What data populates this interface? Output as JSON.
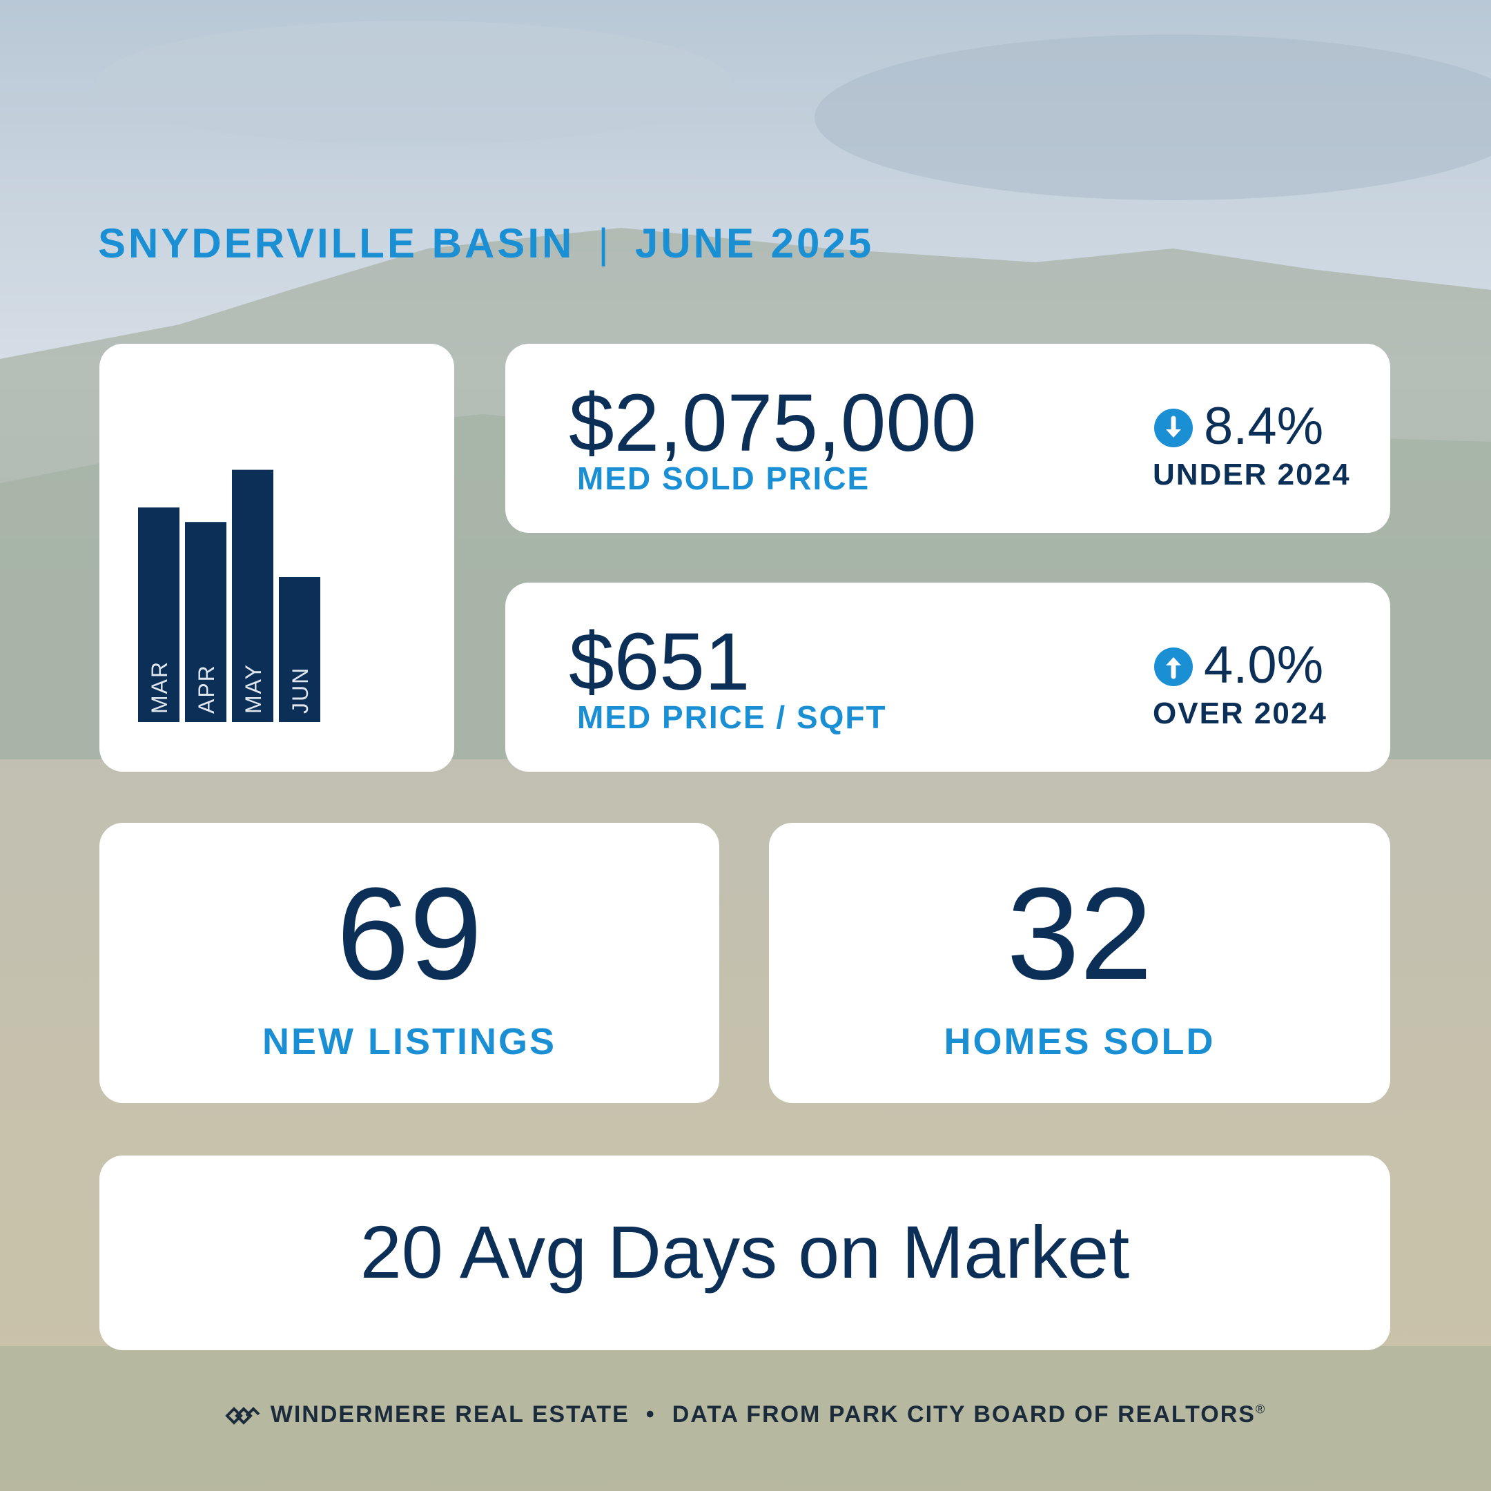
{
  "header": {
    "region": "SNYDERVILLE BASIN",
    "separator": "|",
    "period": "JUNE 2025"
  },
  "chart_data": {
    "type": "bar",
    "categories": [
      "MAR",
      "APR",
      "MAY",
      "JUN"
    ],
    "values": [
      0.74,
      0.69,
      0.87,
      0.5
    ],
    "title": "",
    "xlabel": "",
    "ylabel": "",
    "ylim": [
      0,
      1
    ],
    "grid": false,
    "bar_color": "#0b2f57",
    "label_color": "#dfe6ee"
  },
  "stats": {
    "median_sold_price": {
      "value": "$2,075,000",
      "label": "MED SOLD PRICE",
      "change": "8.4%",
      "change_label": "UNDER 2024",
      "direction_icon": "arrow-down-icon"
    },
    "median_price_sqft": {
      "value": "$651",
      "label": "MED PRICE / SQFT",
      "change": "4.0%",
      "change_label": "OVER 2024",
      "direction_icon": "arrow-up-icon"
    }
  },
  "counts": {
    "new_listings": {
      "value": "69",
      "label": "NEW LISTINGS"
    },
    "homes_sold": {
      "value": "32",
      "label": "HOMES SOLD"
    }
  },
  "days_on_market": {
    "text": "20 Avg Days on Market"
  },
  "footer": {
    "brand": "WINDERMERE REAL ESTATE",
    "bullet": "•",
    "source": "DATA FROM PARK CITY BOARD OF REALTORS",
    "registered": "®",
    "logo_icon": "windermere-logo-icon"
  },
  "colors": {
    "accent_blue": "#1a8fd4",
    "navy": "#0b2f57",
    "card": "#ffffff"
  }
}
